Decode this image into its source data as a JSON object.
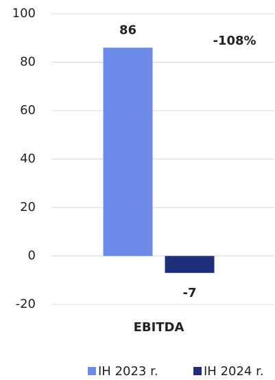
{
  "chart_data": {
    "type": "bar",
    "categories": [
      "EBITDA"
    ],
    "series": [
      {
        "name": "IH 2023 r.",
        "color": "#6d8be8",
        "values": [
          86
        ]
      },
      {
        "name": "IH 2024 r.",
        "color": "#1f2e78",
        "values": [
          -7
        ]
      }
    ],
    "annotation": "-108%",
    "annotation_color": "#e8782a",
    "ylim": [
      -20,
      100
    ],
    "yticks": [
      -20,
      0,
      20,
      40,
      60,
      80,
      100
    ],
    "grid": true,
    "legend": "bottom"
  }
}
